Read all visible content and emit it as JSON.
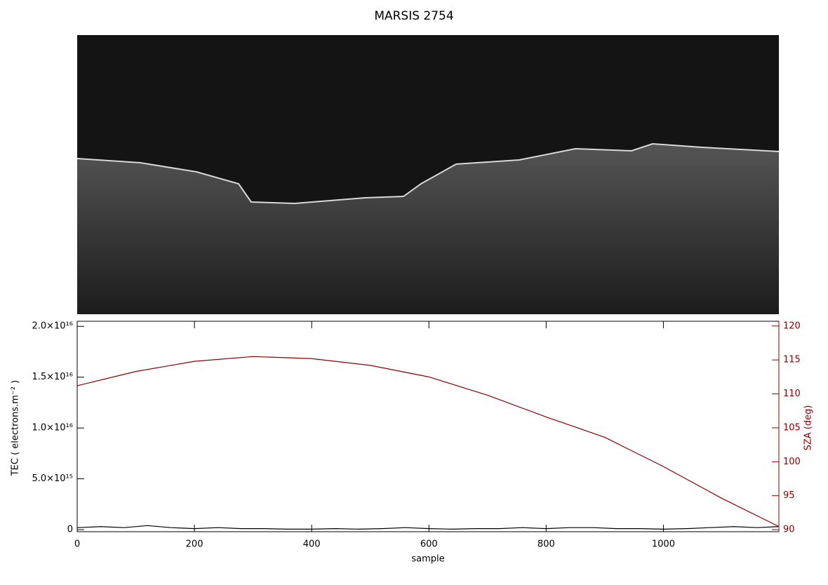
{
  "chart_data": {
    "type": "line",
    "title": "MARSIS 2754",
    "xlabel": "sample",
    "ylabel": "TEC ( electrons.m⁻² )",
    "y2label": "SZA (deg)",
    "xlim": [
      0,
      1197
    ],
    "xticks": [
      0,
      200,
      400,
      600,
      800,
      1000
    ],
    "ylim": [
      -200000000000000.0,
      2.05e+16
    ],
    "yticks": [
      0,
      {
        "value": 5000000000000000.0,
        "label": "5.0×10¹⁵"
      },
      {
        "value": 1e+16,
        "label": "1.0×10¹⁶"
      },
      {
        "value": 1.5e+16,
        "label": "1.5×10¹⁶"
      },
      {
        "value": 2e+16,
        "label": "2.0×10¹⁶"
      }
    ],
    "y2lim": [
      89.7,
      120.7
    ],
    "y2ticks": [
      90,
      95,
      100,
      105,
      110,
      115,
      120
    ],
    "y2color": "#8b0000",
    "series": [
      {
        "name": "TEC",
        "color": "#000000",
        "x": [
          0,
          40,
          80,
          120,
          160,
          200,
          240,
          280,
          320,
          360,
          400,
          440,
          480,
          520,
          560,
          600,
          640,
          680,
          720,
          760,
          800,
          840,
          880,
          920,
          960,
          1000,
          1040,
          1080,
          1120,
          1160,
          1196
        ],
        "values": [
          200000000000000.0,
          300000000000000.0,
          200000000000000.0,
          400000000000000.0,
          200000000000000.0,
          100000000000000.0,
          200000000000000.0,
          100000000000000.0,
          100000000000000.0,
          50000000000000.0,
          50000000000000.0,
          100000000000000.0,
          50000000000000.0,
          100000000000000.0,
          200000000000000.0,
          100000000000000.0,
          50000000000000.0,
          100000000000000.0,
          100000000000000.0,
          200000000000000.0,
          100000000000000.0,
          200000000000000.0,
          200000000000000.0,
          100000000000000.0,
          100000000000000.0,
          50000000000000.0,
          100000000000000.0,
          200000000000000.0,
          300000000000000.0,
          200000000000000.0,
          300000000000000.0
        ]
      },
      {
        "name": "SZA",
        "color": "#8b0000",
        "axis": "y2",
        "x": [
          0,
          100,
          200,
          300,
          400,
          500,
          600,
          700,
          800,
          900,
          1000,
          1100,
          1196
        ],
        "values": [
          111.2,
          113.3,
          114.8,
          115.5,
          115.2,
          114.2,
          112.5,
          109.8,
          106.6,
          103.6,
          99.3,
          94.6,
          90.5
        ]
      }
    ]
  }
}
